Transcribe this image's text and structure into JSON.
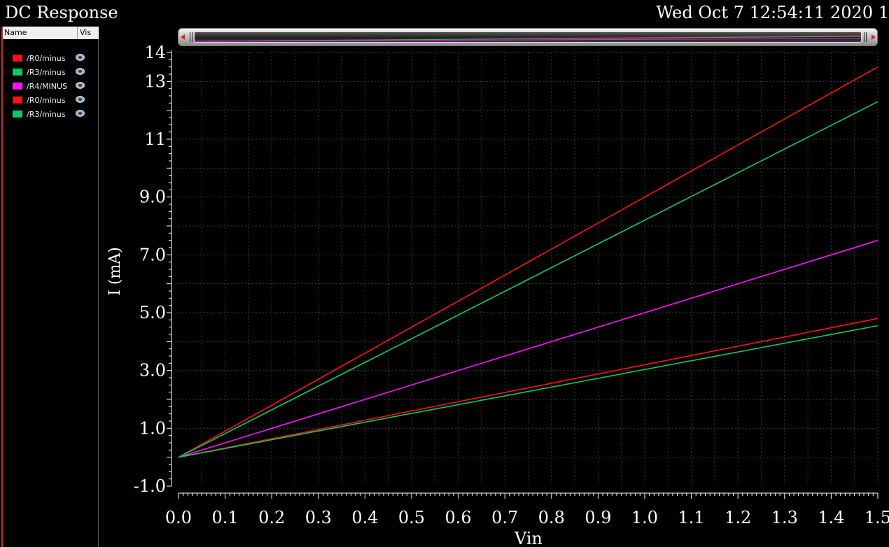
{
  "header": {
    "title": "DC Response",
    "timestamp": "Wed Oct 7 12:54:11 2020 1"
  },
  "legend": {
    "col_name": "Name",
    "col_vis": "Vis",
    "items": [
      {
        "label": "/R0/minus",
        "color": "#ff1010"
      },
      {
        "label": "/R3/minus",
        "color": "#10c860"
      },
      {
        "label": "/R4/MINUS",
        "color": "#ff10ff"
      },
      {
        "label": "/R0/minus",
        "color": "#ff1010"
      },
      {
        "label": "/R3/minus",
        "color": "#10c860"
      }
    ]
  },
  "chart_data": {
    "type": "line",
    "xlabel": "Vin",
    "ylabel": "I (mA)",
    "xlim": [
      0.0,
      1.5
    ],
    "ylim": [
      -1.0,
      14.0
    ],
    "xticks": [
      "0.0",
      "0.1",
      "0.2",
      "0.3",
      "0.4",
      "0.5",
      "0.6",
      "0.7",
      "0.8",
      "0.9",
      "1.0",
      "1.1",
      "1.2",
      "1.3",
      "1.4",
      "1.5"
    ],
    "yticks": [
      {
        "v": -1.0,
        "label": "-1.0"
      },
      {
        "v": 1.0,
        "label": "1.0"
      },
      {
        "v": 3.0,
        "label": "3.0"
      },
      {
        "v": 5.0,
        "label": "5.0"
      },
      {
        "v": 7.0,
        "label": "7.0"
      },
      {
        "v": 9.0,
        "label": "9.0"
      },
      {
        "v": 11.0,
        "label": "11"
      },
      {
        "v": 13.0,
        "label": "13"
      },
      {
        "v": 14.0,
        "label": "14"
      }
    ],
    "grid": true,
    "x": [
      0.0,
      1.5
    ],
    "series": [
      {
        "name": "/R0/minus",
        "color": "#ff1010",
        "values": [
          0.0,
          13.5
        ]
      },
      {
        "name": "/R3/minus",
        "color": "#10c860",
        "values": [
          0.0,
          12.3
        ]
      },
      {
        "name": "/R4/MINUS",
        "color": "#ff10ff",
        "values": [
          0.0,
          7.5
        ]
      },
      {
        "name": "/R0/minus",
        "color": "#ff1010",
        "values": [
          0.0,
          4.8
        ]
      },
      {
        "name": "/R3/minus",
        "color": "#10c860",
        "values": [
          0.0,
          4.55
        ]
      }
    ]
  }
}
